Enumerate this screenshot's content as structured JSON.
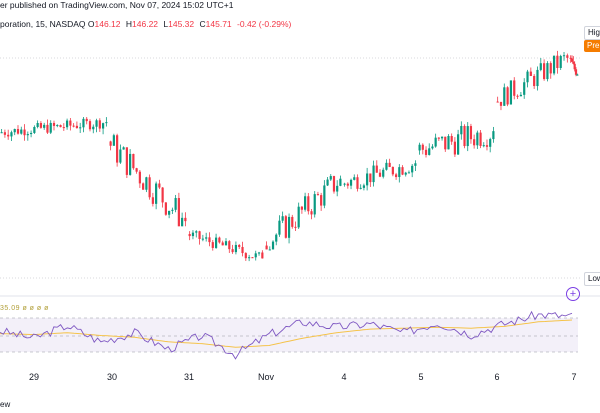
{
  "header": {
    "published_line": "er published on TradingView.com, Nov 07, 2024 15:02 UTC+1"
  },
  "legend": {
    "symbol": "poration, 15, NASDAQ",
    "open_key": "O",
    "open": "146.12",
    "high_key": "H",
    "high": "146.22",
    "low_key": "L",
    "low": "145.32",
    "close_key": "C",
    "close": "145.71",
    "change": "-0.42 (-0.29%)"
  },
  "price_tags": {
    "high": "High",
    "pre": "Pre",
    "low": "Low"
  },
  "indicator": {
    "label": "35.09 ø ø ø ø",
    "add_icon": "plus-circle-icon"
  },
  "footer": {
    "text": "ew"
  },
  "colors": {
    "up": "#089981",
    "down": "#f23645",
    "rsi": "#7e57c2",
    "rsi_ma": "#f5c34a",
    "pre": "#f57c00"
  },
  "chart_data": {
    "type": "candlestick",
    "x_ticks": [
      "29",
      "30",
      "31",
      "Nov",
      "4",
      "5",
      "6",
      "7"
    ],
    "days": [
      {
        "label": "29",
        "open": 141.2,
        "high": 142.4,
        "low": 139.8,
        "close": 142.0
      },
      {
        "label": "30",
        "open": 140.5,
        "high": 141.1,
        "low": 133.9,
        "close": 134.3
      },
      {
        "label": "31",
        "open": 133.3,
        "high": 133.6,
        "low": 130.9,
        "close": 131.4
      },
      {
        "label": "Nov",
        "open": 132.4,
        "high": 138.4,
        "low": 132.1,
        "close": 137.6
      },
      {
        "label": "4",
        "open": 137.2,
        "high": 140.1,
        "low": 135.9,
        "close": 138.8
      },
      {
        "label": "5",
        "open": 139.8,
        "high": 142.4,
        "low": 136.1,
        "close": 141.3
      },
      {
        "label": "6",
        "open": 143.6,
        "high": 147.8,
        "low": 142.8,
        "close": 147.0
      },
      {
        "label": "7",
        "open": 147.0,
        "high": 147.2,
        "low": 145.3,
        "close": 145.7
      }
    ],
    "rsi": {
      "name": "RSI",
      "values": [
        52,
        44,
        58,
        40,
        50,
        32,
        47,
        26,
        48,
        62,
        56,
        60,
        50,
        61,
        48,
        60,
        70,
        68
      ]
    },
    "rsi_ma": [
      49,
      48,
      50,
      47,
      45,
      40,
      38,
      34,
      36,
      44,
      50,
      54,
      55,
      56,
      55,
      57,
      62,
      64
    ]
  }
}
